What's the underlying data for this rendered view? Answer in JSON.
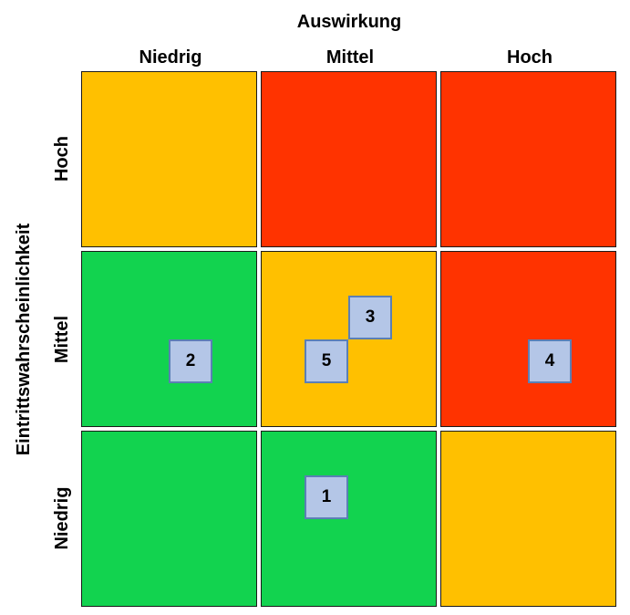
{
  "axis_x_title": "Auswirkung",
  "axis_y_title": "Eintrittswahrscheinlichkeit",
  "columns": [
    "Niedrig",
    "Mittel",
    "Hoch"
  ],
  "rows": [
    "Hoch",
    "Mittel",
    "Niedrig"
  ],
  "colors": {
    "red": "#ff3300",
    "orange": "#ffc000",
    "green": "#12d34f"
  },
  "cells": [
    [
      "orange",
      "red",
      "red"
    ],
    [
      "green",
      "orange",
      "red"
    ],
    [
      "green",
      "green",
      "orange"
    ]
  ],
  "risks": [
    {
      "id": "1",
      "label": "1",
      "impact": "Mittel",
      "probability": "Niedrig"
    },
    {
      "id": "2",
      "label": "2",
      "impact": "Niedrig",
      "probability": "Mittel"
    },
    {
      "id": "3",
      "label": "3",
      "impact": "Mittel",
      "probability": "Mittel"
    },
    {
      "id": "4",
      "label": "4",
      "impact": "Hoch",
      "probability": "Mittel"
    },
    {
      "id": "5",
      "label": "5",
      "impact": "Mittel",
      "probability": "Mittel"
    }
  ]
}
